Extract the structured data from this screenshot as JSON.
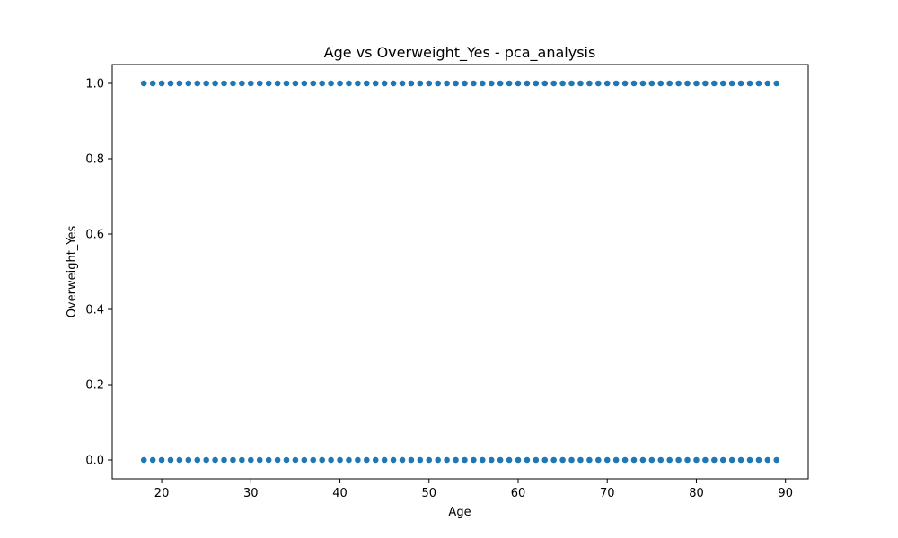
{
  "chart_data": {
    "type": "scatter",
    "title": "Age vs Overweight_Yes - pca_analysis",
    "xlabel": "Age",
    "ylabel": "Overweight_Yes",
    "xlim": [
      14.45,
      92.55
    ],
    "ylim": [
      -0.05,
      1.05
    ],
    "xticks": [
      20,
      30,
      40,
      50,
      60,
      70,
      80,
      90
    ],
    "yticks": [
      0.0,
      0.2,
      0.4,
      0.6,
      0.8,
      1.0
    ],
    "xtick_labels": [
      "20",
      "30",
      "40",
      "50",
      "60",
      "70",
      "80",
      "90"
    ],
    "ytick_labels": [
      "0.0",
      "0.2",
      "0.4",
      "0.6",
      "0.8",
      "1.0"
    ],
    "grid": false,
    "marker_color": "#1f77b4",
    "series": [
      {
        "x": [
          18,
          19,
          20,
          21,
          22,
          23,
          24,
          25,
          26,
          27,
          28,
          29,
          30,
          31,
          32,
          33,
          34,
          35,
          36,
          37,
          38,
          39,
          40,
          41,
          42,
          43,
          44,
          45,
          46,
          47,
          48,
          49,
          50,
          51,
          52,
          53,
          54,
          55,
          56,
          57,
          58,
          59,
          60,
          61,
          62,
          63,
          64,
          65,
          66,
          67,
          68,
          69,
          70,
          71,
          72,
          73,
          74,
          75,
          76,
          77,
          78,
          79,
          80,
          81,
          82,
          83,
          84,
          85,
          86,
          87,
          88,
          89
        ],
        "y_value": 1.0
      },
      {
        "x": [
          18,
          19,
          20,
          21,
          22,
          23,
          24,
          25,
          26,
          27,
          28,
          29,
          30,
          31,
          32,
          33,
          34,
          35,
          36,
          37,
          38,
          39,
          40,
          41,
          42,
          43,
          44,
          45,
          46,
          47,
          48,
          49,
          50,
          51,
          52,
          53,
          54,
          55,
          56,
          57,
          58,
          59,
          60,
          61,
          62,
          63,
          64,
          65,
          66,
          67,
          68,
          69,
          70,
          71,
          72,
          73,
          74,
          75,
          76,
          77,
          78,
          79,
          80,
          81,
          82,
          83,
          84,
          85,
          86,
          87,
          88,
          89
        ],
        "y_value": 0.0
      }
    ]
  }
}
